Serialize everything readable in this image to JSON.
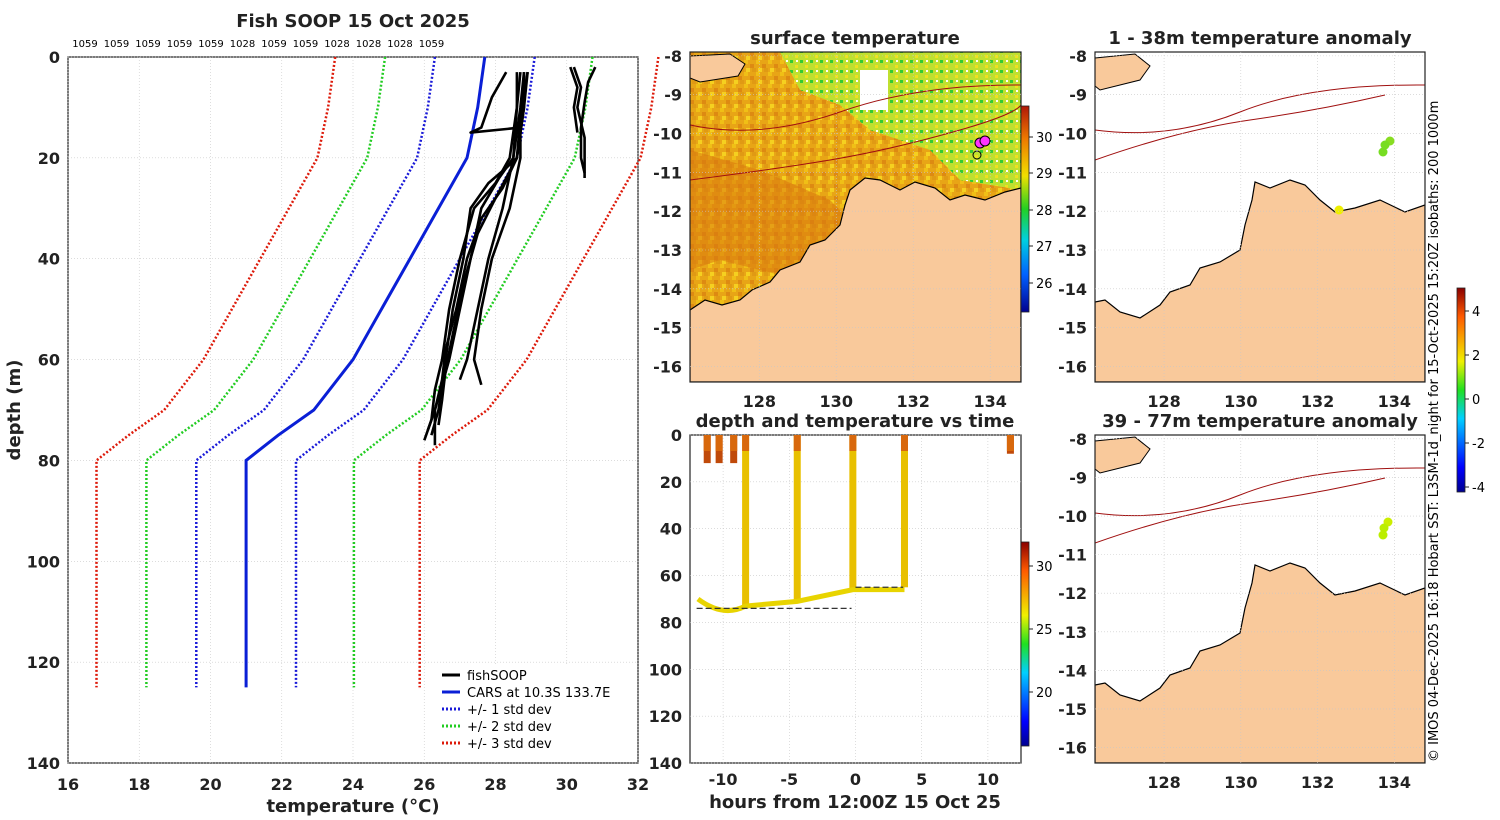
{
  "chart_data": [
    {
      "id": "profile",
      "type": "line",
      "title": "Fish SOOP 15 Oct 2025",
      "xlabel": "temperature (°C)",
      "ylabel": "depth (m)",
      "xlim": [
        16,
        32
      ],
      "ylim": [
        0,
        140
      ],
      "xticks": [
        "16",
        "18",
        "20",
        "22",
        "24",
        "26",
        "28",
        "30",
        "32"
      ],
      "yticks": [
        "0",
        "20",
        "40",
        "60",
        "80",
        "100",
        "120",
        "140"
      ],
      "top_labels": [
        "1059",
        "1059",
        "1059",
        "1059",
        "1059",
        "1028",
        "1059",
        "1059",
        "1028",
        "1028",
        "1028",
        "1059"
      ],
      "legend": {
        "fishsoop": "fishSOOP",
        "cars": "CARS at 10.3S 133.7E",
        "sd1": "+/- 1 std dev",
        "sd2": "+/- 2 std dev",
        "sd3": "+/- 3 std dev"
      },
      "colors": {
        "fishsoop": "#000000",
        "cars": "#0a1fd6",
        "sd1": "#1a1ad8",
        "sd2": "#22cc22",
        "sd3": "#dd1a0a"
      },
      "depths": [
        0,
        10,
        20,
        30,
        40,
        50,
        60,
        70,
        75,
        80,
        125
      ],
      "cars_temp": [
        27.7,
        27.5,
        27.2,
        26.4,
        25.6,
        24.8,
        24.0,
        22.9,
        21.9,
        21.0,
        21.0
      ],
      "band_offsets": [
        1.4,
        2.8,
        4.2
      ],
      "fishsoop_profiles": [
        {
          "depth": [
            3,
            10,
            20,
            22,
            25,
            30,
            40,
            50,
            60,
            65,
            70,
            74
          ],
          "temp": [
            28.9,
            28.8,
            28.6,
            28.3,
            27.8,
            27.3,
            27.1,
            26.8,
            26.6,
            26.5,
            26.3,
            26.1
          ]
        },
        {
          "depth": [
            3,
            10,
            20,
            24,
            30,
            40,
            50,
            60,
            65,
            70,
            75
          ],
          "temp": [
            28.8,
            28.7,
            28.5,
            28.1,
            27.6,
            27.3,
            27.0,
            26.7,
            26.5,
            26.4,
            26.2
          ]
        },
        {
          "depth": [
            3,
            10,
            20,
            25,
            30,
            40,
            50,
            60,
            66,
            72,
            76
          ],
          "temp": [
            28.7,
            28.6,
            28.4,
            28.0,
            27.4,
            27.0,
            26.7,
            26.5,
            26.3,
            26.2,
            26.0
          ]
        },
        {
          "depth": [
            3,
            12,
            20,
            26,
            32,
            40,
            50,
            58,
            64,
            70,
            77
          ],
          "temp": [
            28.9,
            28.7,
            28.6,
            28.2,
            27.6,
            27.2,
            26.9,
            26.6,
            26.5,
            26.3,
            26.3
          ]
        },
        {
          "depth": [
            3,
            10,
            20,
            28,
            35,
            45,
            55,
            62,
            68,
            73
          ],
          "temp": [
            28.8,
            28.8,
            28.6,
            28.0,
            27.5,
            27.1,
            26.8,
            26.6,
            26.5,
            26.4
          ]
        },
        {
          "depth": [
            3,
            10,
            20,
            30,
            40,
            50,
            60,
            64
          ],
          "temp": [
            28.6,
            28.6,
            28.5,
            28.2,
            27.8,
            27.5,
            27.2,
            27.0
          ]
        },
        {
          "depth": [
            3,
            8,
            14,
            15,
            14,
            20,
            30,
            40,
            50,
            60,
            65
          ],
          "temp": [
            28.3,
            27.9,
            27.6,
            27.3,
            28.7,
            28.7,
            28.4,
            27.9,
            27.6,
            27.4,
            27.6
          ]
        },
        {
          "depth": [
            2,
            6,
            10,
            16,
            24
          ],
          "temp": [
            30.2,
            30.4,
            30.3,
            30.5,
            30.5
          ]
        },
        {
          "depth": [
            2,
            5,
            9,
            14,
            20,
            23
          ],
          "temp": [
            30.8,
            30.6,
            30.5,
            30.4,
            30.4,
            30.5
          ]
        },
        {
          "depth": [
            2,
            6,
            10,
            15
          ],
          "temp": [
            30.1,
            30.3,
            30.2,
            30.3
          ]
        }
      ]
    },
    {
      "id": "sst",
      "type": "heatmap",
      "title": "surface temperature",
      "xticks": [
        "128",
        "130",
        "132",
        "134"
      ],
      "yticks": [
        "-8",
        "-9",
        "-10",
        "-11",
        "-12",
        "-13",
        "-14",
        "-15",
        "-16"
      ],
      "colorbar_ticks": [
        "30",
        "29",
        "28",
        "27",
        "26"
      ]
    },
    {
      "id": "time",
      "type": "scatter",
      "title": "depth and temperature vs time",
      "xlabel": "hours from 12:00Z 15 Oct 25",
      "xlim": [
        -12.5,
        12.5
      ],
      "ylim": [
        0,
        140
      ],
      "xticks": [
        "-10",
        "-5",
        "0",
        "5",
        "10"
      ],
      "yticks": [
        "0",
        "20",
        "40",
        "60",
        "80",
        "100",
        "120",
        "140"
      ],
      "colorbar_ticks": [
        "30",
        "25",
        "20"
      ],
      "casts": [
        {
          "hour": -11.2,
          "max_depth": 12,
          "temp": 30.5
        },
        {
          "hour": -10.3,
          "max_depth": 12,
          "temp": 30.5
        },
        {
          "hour": -9.2,
          "max_depth": 12,
          "temp": 30.5
        },
        {
          "hour": -8.3,
          "max_depth": 74,
          "temp": 28.0
        },
        {
          "hour": -4.4,
          "max_depth": 71,
          "temp": 28.0
        },
        {
          "hour": -0.2,
          "max_depth": 66,
          "temp": 28.0
        },
        {
          "hour": 3.7,
          "max_depth": 65,
          "temp": 28.0
        },
        {
          "hour": 11.7,
          "max_depth": 8,
          "temp": 30.8
        }
      ],
      "bottom_lines": [
        {
          "from": -12,
          "to": -0.3,
          "depth": 74
        },
        {
          "from": 0,
          "to": 3.6,
          "depth": 65
        }
      ]
    },
    {
      "id": "anom1",
      "type": "heatmap",
      "title": "1 - 38m temperature anomaly",
      "xticks": [
        "128",
        "130",
        "132",
        "134"
      ],
      "yticks": [
        "-8",
        "-9",
        "-10",
        "-11",
        "-12",
        "-13",
        "-14",
        "-15",
        "-16"
      ]
    },
    {
      "id": "anom2",
      "type": "heatmap",
      "title": "39 - 77m temperature anomaly",
      "xticks": [
        "128",
        "130",
        "132",
        "134"
      ],
      "yticks": [
        "-8",
        "-9",
        "-10",
        "-11",
        "-12",
        "-13",
        "-14",
        "-15",
        "-16"
      ],
      "colorbar_ticks": [
        "4",
        "2",
        "0",
        "-2",
        "-4"
      ]
    }
  ],
  "credit": "© IMOS 04-Dec-2025 16:18 Hobart SST: L3SM-1d_night for 15-Oct-2025 15:20Z isobaths: 200  1000m",
  "colors": {
    "land": "#f9c99b",
    "grid": "#c8c8c8",
    "frame": "#222222",
    "isobath": "#a01010"
  }
}
